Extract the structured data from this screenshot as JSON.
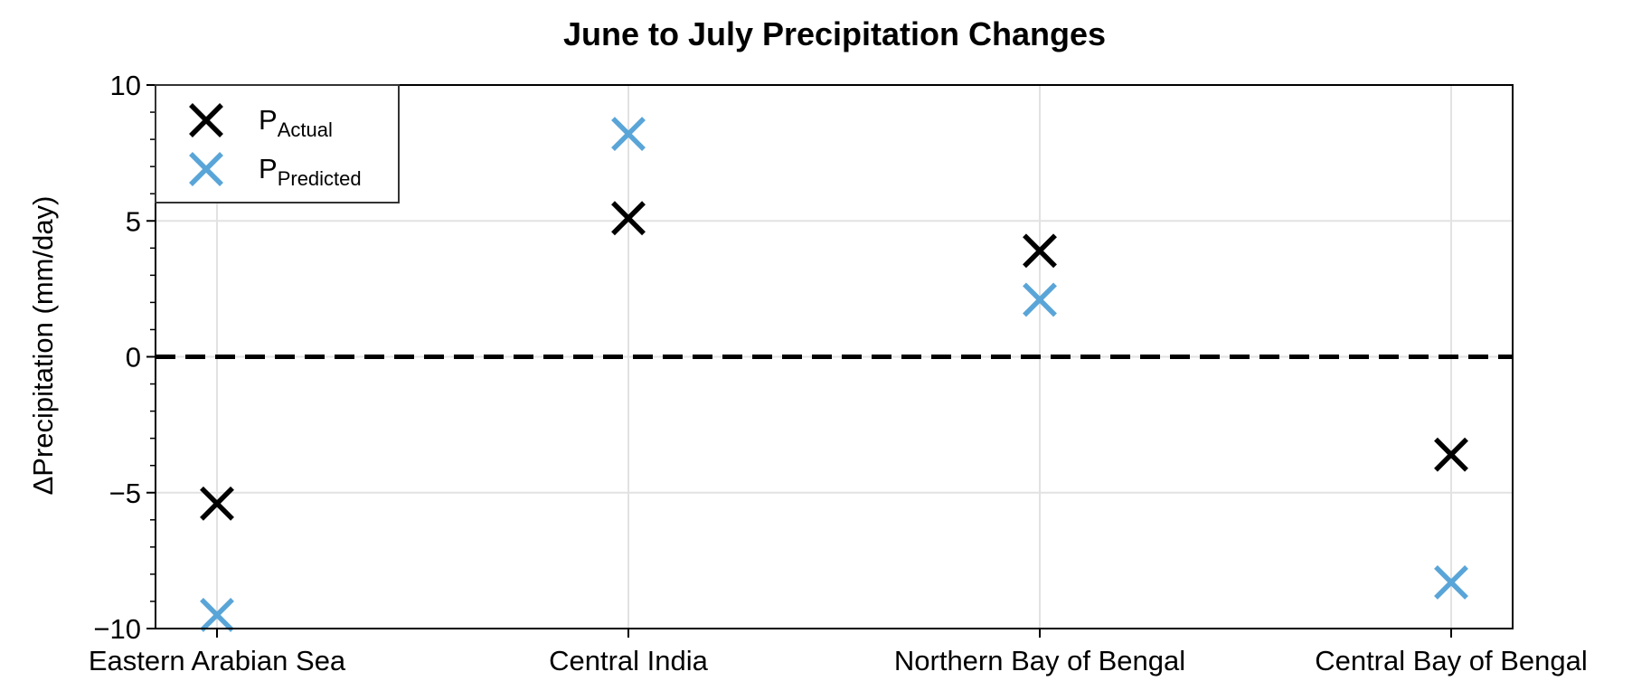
{
  "chart_data": {
    "type": "scatter",
    "title": "June to July Precipitation Changes",
    "xlabel": "",
    "ylabel": "ΔPrecipitation (mm/day)",
    "categories": [
      "Eastern Arabian Sea",
      "Central India",
      "Northern Bay of Bengal",
      "Central Bay of Bengal"
    ],
    "ylim": [
      -10,
      10
    ],
    "yticks": [
      -10,
      -5,
      0,
      5,
      10
    ],
    "ytick_labels": [
      "−10",
      "−5",
      "0",
      "5",
      "10"
    ],
    "reference_line": {
      "y": 0,
      "style": "dashed",
      "color": "#000000"
    },
    "grid": true,
    "legend_position": "top-left",
    "series": [
      {
        "name": "P",
        "name_subscript": "Actual",
        "marker": "x",
        "color": "#000000",
        "values": [
          -5.4,
          5.1,
          3.9,
          -3.6
        ]
      },
      {
        "name": "P",
        "name_subscript": "Predicted",
        "marker": "x",
        "color": "#5aa5d8",
        "values": [
          -9.5,
          8.2,
          2.1,
          -8.3
        ]
      }
    ]
  }
}
